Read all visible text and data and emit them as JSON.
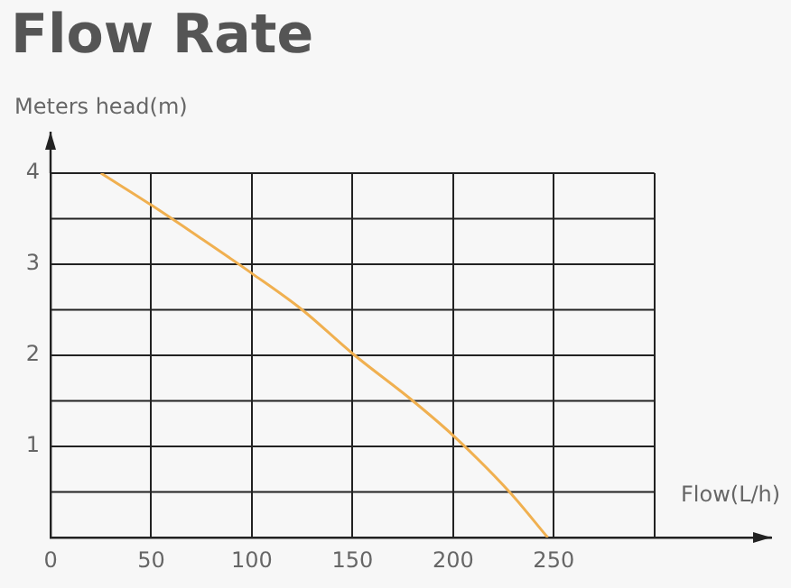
{
  "chart_data": {
    "type": "line",
    "title": "Flow Rate",
    "xlabel": "Flow(L/h)",
    "ylabel": "Meters head(m)",
    "series": [
      {
        "color": "#f0b050",
        "x": [
          25,
          50,
          75,
          100,
          125,
          150,
          180,
          200,
          228,
          247
        ],
        "values": [
          4,
          3.65,
          3.28,
          2.9,
          2.5,
          2.02,
          1.5,
          1.12,
          0.5,
          0
        ]
      }
    ],
    "xlim": [
      0,
      358
    ],
    "xticks": [
      0,
      50,
      100,
      150,
      200,
      250,
      {
        "value": 300,
        "label": null
      }
    ],
    "ylim": [
      0,
      4
    ],
    "yticks": [
      {
        "value": 0,
        "label": null
      },
      {
        "value": 0.5,
        "label": null
      },
      1,
      {
        "value": 1.5,
        "label": null
      },
      2,
      {
        "value": 2.5,
        "label": null
      },
      3,
      {
        "value": 3.5,
        "label": null
      },
      4
    ],
    "grid": true,
    "legend": false,
    "marker": "none"
  }
}
